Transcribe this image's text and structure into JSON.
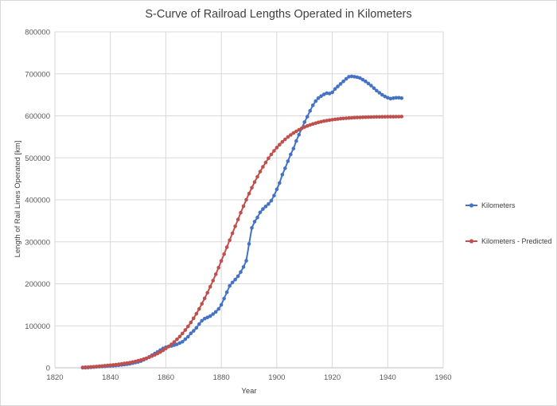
{
  "chart_data": {
    "type": "line",
    "title": "S-Curve of Railroad Lengths Operated in Kilometers",
    "xlabel": "Year",
    "ylabel": "Length of Rail Lines Operated [km]",
    "xlim": [
      1820,
      1960
    ],
    "ylim": [
      0,
      800000
    ],
    "xticks": [
      "1820",
      "1840",
      "1860",
      "1880",
      "1900",
      "1920",
      "1940",
      "1960"
    ],
    "yticks": [
      "0",
      "100000",
      "200000",
      "300000",
      "400000",
      "500000",
      "600000",
      "700000",
      "800000"
    ],
    "grid": true,
    "legend": "right",
    "series": [
      {
        "name": "Kilometers",
        "color": "#4472c4",
        "x": [
          1830,
          1831,
          1832,
          1833,
          1834,
          1835,
          1836,
          1837,
          1838,
          1839,
          1840,
          1841,
          1842,
          1843,
          1844,
          1845,
          1846,
          1847,
          1848,
          1849,
          1850,
          1851,
          1852,
          1853,
          1854,
          1855,
          1856,
          1857,
          1858,
          1859,
          1860,
          1861,
          1862,
          1863,
          1864,
          1865,
          1866,
          1867,
          1868,
          1869,
          1870,
          1871,
          1872,
          1873,
          1874,
          1875,
          1876,
          1877,
          1878,
          1879,
          1880,
          1881,
          1882,
          1883,
          1884,
          1885,
          1886,
          1887,
          1888,
          1889,
          1890,
          1891,
          1892,
          1893,
          1894,
          1895,
          1896,
          1897,
          1898,
          1899,
          1900,
          1901,
          1902,
          1903,
          1904,
          1905,
          1906,
          1907,
          1908,
          1909,
          1910,
          1911,
          1912,
          1913,
          1914,
          1915,
          1916,
          1917,
          1918,
          1919,
          1920,
          1921,
          1922,
          1923,
          1924,
          1925,
          1926,
          1927,
          1928,
          1929,
          1930,
          1931,
          1932,
          1933,
          1934,
          1935,
          1936,
          1937,
          1938,
          1939,
          1940,
          1941,
          1942,
          1943,
          1944,
          1945
        ],
        "values": [
          100,
          200,
          600,
          1100,
          1700,
          2200,
          2600,
          3000,
          3500,
          4300,
          4500,
          5000,
          5500,
          6000,
          6800,
          7500,
          8500,
          9500,
          11000,
          12500,
          14000,
          16000,
          19000,
          22000,
          26000,
          30000,
          34000,
          38000,
          42000,
          46000,
          49000,
          51000,
          52000,
          54000,
          56000,
          59000,
          62000,
          68000,
          74000,
          82000,
          88000,
          95000,
          104000,
          112000,
          117000,
          120000,
          123000,
          128000,
          133000,
          140000,
          150000,
          165000,
          180000,
          195000,
          203000,
          210000,
          218000,
          228000,
          240000,
          255000,
          295000,
          333000,
          348000,
          358000,
          370000,
          378000,
          384000,
          390000,
          398000,
          410000,
          425000,
          440000,
          460000,
          475000,
          492000,
          508000,
          522000,
          540000,
          555000,
          570000,
          585000,
          598000,
          612000,
          625000,
          635000,
          642000,
          647000,
          651000,
          654000,
          653000,
          656000,
          664000,
          670000,
          676000,
          682000,
          688000,
          693000,
          694000,
          693000,
          692000,
          690000,
          686000,
          682000,
          677000,
          672000,
          666000,
          660000,
          655000,
          650000,
          646000,
          643000,
          641000,
          642000,
          643000,
          643000,
          642000
        ]
      },
      {
        "name": "Kilometers - Predicted",
        "color": "#c0504d",
        "x": [
          1830,
          1831,
          1832,
          1833,
          1834,
          1835,
          1836,
          1837,
          1838,
          1839,
          1840,
          1841,
          1842,
          1843,
          1844,
          1845,
          1846,
          1847,
          1848,
          1849,
          1850,
          1851,
          1852,
          1853,
          1854,
          1855,
          1856,
          1857,
          1858,
          1859,
          1860,
          1861,
          1862,
          1863,
          1864,
          1865,
          1866,
          1867,
          1868,
          1869,
          1870,
          1871,
          1872,
          1873,
          1874,
          1875,
          1876,
          1877,
          1878,
          1879,
          1880,
          1881,
          1882,
          1883,
          1884,
          1885,
          1886,
          1887,
          1888,
          1889,
          1890,
          1891,
          1892,
          1893,
          1894,
          1895,
          1896,
          1897,
          1898,
          1899,
          1900,
          1901,
          1902,
          1903,
          1904,
          1905,
          1906,
          1907,
          1908,
          1909,
          1910,
          1911,
          1912,
          1913,
          1914,
          1915,
          1916,
          1917,
          1918,
          1919,
          1920,
          1921,
          1922,
          1923,
          1924,
          1925,
          1926,
          1927,
          1928,
          1929,
          1930,
          1931,
          1932,
          1933,
          1934,
          1935,
          1936,
          1937,
          1938,
          1939,
          1940,
          1941,
          1942,
          1943,
          1944,
          1945
        ],
        "values": [
          1000,
          1300,
          1600,
          2000,
          2500,
          3000,
          3600,
          4200,
          4900,
          5500,
          6000,
          6800,
          7500,
          8300,
          9300,
          10200,
          11200,
          12400,
          13700,
          15200,
          16800,
          18600,
          20600,
          22800,
          25200,
          27800,
          30800,
          34000,
          37500,
          41500,
          45800,
          50500,
          55700,
          61400,
          67600,
          74400,
          81800,
          89800,
          98500,
          107800,
          117900,
          128700,
          140200,
          152400,
          165300,
          178800,
          192900,
          207600,
          222800,
          238400,
          254400,
          270700,
          287200,
          303800,
          320400,
          336900,
          353200,
          369200,
          384900,
          400100,
          414800,
          428900,
          442300,
          455000,
          467100,
          478400,
          489000,
          498900,
          508000,
          516500,
          524300,
          531400,
          538000,
          544000,
          549500,
          554500,
          559000,
          563100,
          566800,
          570200,
          573200,
          575900,
          578400,
          580600,
          582600,
          584400,
          586000,
          587400,
          588700,
          589800,
          590800,
          591700,
          592500,
          593200,
          593800,
          594400,
          594900,
          595300,
          595700,
          596000,
          596300,
          596600,
          596800,
          597000,
          597200,
          597300,
          597500,
          597600,
          597700,
          597800,
          597900,
          598000,
          598000,
          598100,
          598100,
          598200
        ]
      }
    ]
  }
}
